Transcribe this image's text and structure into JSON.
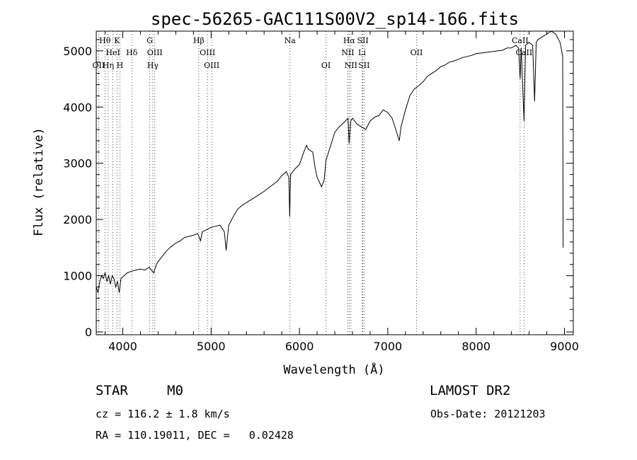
{
  "chart_data": {
    "type": "line",
    "title": "spec-56265-GAC111S00V2_sp14-166.fits",
    "xlabel": "Wavelength (Å)",
    "ylabel": "Flux (relative)",
    "xlim": [
      3700,
      9100
    ],
    "ylim": [
      -50,
      5350
    ],
    "xticks": [
      4000,
      5000,
      6000,
      7000,
      8000,
      9000
    ],
    "yticks": [
      0,
      1000,
      2000,
      3000,
      4000,
      5000
    ],
    "grid": false,
    "series": [
      {
        "points": [
          [
            3700,
            800
          ],
          [
            3720,
            700
          ],
          [
            3740,
            900
          ],
          [
            3760,
            1000
          ],
          [
            3780,
            950
          ],
          [
            3800,
            1050
          ],
          [
            3820,
            900
          ],
          [
            3840,
            1000
          ],
          [
            3860,
            850
          ],
          [
            3880,
            1000
          ],
          [
            3900,
            950
          ],
          [
            3920,
            800
          ],
          [
            3940,
            900
          ],
          [
            3960,
            700
          ],
          [
            3980,
            950
          ],
          [
            4000,
            980
          ],
          [
            4050,
            1050
          ],
          [
            4100,
            1080
          ],
          [
            4150,
            1100
          ],
          [
            4200,
            1120
          ],
          [
            4250,
            1100
          ],
          [
            4300,
            1150
          ],
          [
            4350,
            1050
          ],
          [
            4380,
            1200
          ],
          [
            4400,
            1250
          ],
          [
            4450,
            1350
          ],
          [
            4500,
            1450
          ],
          [
            4550,
            1520
          ],
          [
            4600,
            1580
          ],
          [
            4650,
            1620
          ],
          [
            4700,
            1680
          ],
          [
            4750,
            1700
          ],
          [
            4800,
            1720
          ],
          [
            4850,
            1750
          ],
          [
            4880,
            1620
          ],
          [
            4900,
            1780
          ],
          [
            4950,
            1820
          ],
          [
            5000,
            1860
          ],
          [
            5050,
            1880
          ],
          [
            5100,
            1900
          ],
          [
            5150,
            1780
          ],
          [
            5170,
            1450
          ],
          [
            5200,
            1900
          ],
          [
            5250,
            2050
          ],
          [
            5300,
            2180
          ],
          [
            5350,
            2250
          ],
          [
            5400,
            2300
          ],
          [
            5450,
            2350
          ],
          [
            5500,
            2400
          ],
          [
            5550,
            2450
          ],
          [
            5600,
            2500
          ],
          [
            5650,
            2560
          ],
          [
            5700,
            2620
          ],
          [
            5750,
            2680
          ],
          [
            5800,
            2780
          ],
          [
            5850,
            2850
          ],
          [
            5880,
            2750
          ],
          [
            5890,
            2050
          ],
          [
            5900,
            2800
          ],
          [
            5950,
            2900
          ],
          [
            6000,
            2980
          ],
          [
            6050,
            3200
          ],
          [
            6080,
            3320
          ],
          [
            6100,
            3250
          ],
          [
            6150,
            3200
          ],
          [
            6180,
            2900
          ],
          [
            6200,
            2750
          ],
          [
            6230,
            2650
          ],
          [
            6250,
            2580
          ],
          [
            6280,
            2700
          ],
          [
            6300,
            3050
          ],
          [
            6350,
            3300
          ],
          [
            6400,
            3550
          ],
          [
            6450,
            3650
          ],
          [
            6500,
            3720
          ],
          [
            6550,
            3800
          ],
          [
            6563,
            3350
          ],
          [
            6580,
            3750
          ],
          [
            6600,
            3800
          ],
          [
            6650,
            3700
          ],
          [
            6700,
            3650
          ],
          [
            6750,
            3600
          ],
          [
            6800,
            3750
          ],
          [
            6850,
            3820
          ],
          [
            6900,
            3850
          ],
          [
            6950,
            3950
          ],
          [
            7000,
            3900
          ],
          [
            7050,
            3800
          ],
          [
            7080,
            3650
          ],
          [
            7100,
            3550
          ],
          [
            7130,
            3400
          ],
          [
            7150,
            3650
          ],
          [
            7200,
            3950
          ],
          [
            7250,
            4200
          ],
          [
            7300,
            4320
          ],
          [
            7350,
            4380
          ],
          [
            7400,
            4450
          ],
          [
            7450,
            4550
          ],
          [
            7500,
            4600
          ],
          [
            7550,
            4650
          ],
          [
            7600,
            4720
          ],
          [
            7650,
            4750
          ],
          [
            7700,
            4800
          ],
          [
            7750,
            4820
          ],
          [
            7800,
            4850
          ],
          [
            7850,
            4880
          ],
          [
            7900,
            4900
          ],
          [
            7950,
            4920
          ],
          [
            8000,
            4950
          ],
          [
            8050,
            4960
          ],
          [
            8100,
            4970
          ],
          [
            8150,
            4980
          ],
          [
            8200,
            4990
          ],
          [
            8250,
            5000
          ],
          [
            8300,
            5010
          ],
          [
            8350,
            5050
          ],
          [
            8400,
            5050
          ],
          [
            8450,
            5100
          ],
          [
            8480,
            5050
          ],
          [
            8498,
            4500
          ],
          [
            8510,
            5050
          ],
          [
            8542,
            3750
          ],
          [
            8560,
            5100
          ],
          [
            8600,
            5150
          ],
          [
            8640,
            5100
          ],
          [
            8662,
            4100
          ],
          [
            8680,
            5150
          ],
          [
            8700,
            5200
          ],
          [
            8750,
            5250
          ],
          [
            8800,
            5300
          ],
          [
            8850,
            5350
          ],
          [
            8900,
            5300
          ],
          [
            8950,
            5150
          ],
          [
            8980,
            4900
          ],
          [
            8985,
            1500
          ]
        ]
      }
    ],
    "lines": [
      {
        "name": "Hθ",
        "wave": 3798,
        "row": 1
      },
      {
        "name": "K",
        "wave": 3934,
        "row": 1
      },
      {
        "name": "G",
        "wave": 4305,
        "row": 1
      },
      {
        "name": "Hβ",
        "wave": 4861,
        "row": 1
      },
      {
        "name": "Na",
        "wave": 5893,
        "row": 1
      },
      {
        "name": "Hα",
        "wave": 6563,
        "row": 1
      },
      {
        "name": "SII",
        "wave": 6717,
        "row": 1
      },
      {
        "name": "CaII",
        "wave": 8498,
        "row": 1
      },
      {
        "name": "HeI",
        "wave": 3889,
        "row": 2
      },
      {
        "name": "Hδ",
        "wave": 4102,
        "row": 2
      },
      {
        "name": "OIII",
        "wave": 4363,
        "row": 2
      },
      {
        "name": "OIII",
        "wave": 4959,
        "row": 2
      },
      {
        "name": "NII",
        "wave": 6548,
        "row": 2
      },
      {
        "name": "Li",
        "wave": 6708,
        "row": 2
      },
      {
        "name": "OII",
        "wave": 7325,
        "row": 2
      },
      {
        "name": "CaII",
        "wave": 8542,
        "row": 2
      },
      {
        "name": "OII",
        "wave": 3727,
        "row": 3
      },
      {
        "name": "Hη",
        "wave": 3835,
        "row": 3
      },
      {
        "name": "H",
        "wave": 3968,
        "row": 3
      },
      {
        "name": "Hγ",
        "wave": 4340,
        "row": 3
      },
      {
        "name": "OIII",
        "wave": 5007,
        "row": 3
      },
      {
        "name": "OI",
        "wave": 6300,
        "row": 3
      },
      {
        "name": "NII",
        "wave": 6583,
        "row": 3
      },
      {
        "name": "SII",
        "wave": 6731,
        "row": 3
      }
    ]
  },
  "info": {
    "object_class": "STAR",
    "subclass": "M0",
    "survey": "LAMOST DR2",
    "redshift": "cz = 116.2 ± 1.8 km/s",
    "obs_date": "Obs-Date: 20121203",
    "coords": "RA = 110.19011, DEC =   0.02428"
  }
}
